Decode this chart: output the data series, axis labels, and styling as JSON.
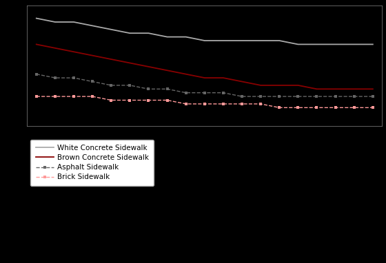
{
  "distances": [
    26,
    25,
    24,
    23,
    22,
    21,
    20,
    19,
    18,
    17,
    16,
    15,
    14,
    13,
    12,
    11,
    10,
    9,
    8
  ],
  "brick": [
    56,
    56,
    56,
    56,
    54,
    54,
    54,
    54,
    52,
    52,
    52,
    52,
    52,
    50,
    50,
    50,
    50,
    50,
    50
  ],
  "asphalt": [
    68,
    66,
    66,
    64,
    62,
    62,
    60,
    60,
    58,
    58,
    58,
    56,
    56,
    56,
    56,
    56,
    56,
    56,
    56
  ],
  "white_concrete": [
    98,
    96,
    96,
    94,
    92,
    90,
    90,
    88,
    88,
    86,
    86,
    86,
    86,
    86,
    84,
    84,
    84,
    84,
    84
  ],
  "brown_concrete": [
    84,
    82,
    80,
    78,
    76,
    74,
    72,
    70,
    68,
    66,
    66,
    64,
    62,
    62,
    62,
    60,
    60,
    60,
    60
  ],
  "background_color": "#000000",
  "text_color": "#ffffff",
  "brick_color": "#ff9999",
  "asphalt_color": "#666666",
  "white_concrete_color": "#aaaaaa",
  "brown_concrete_color": "#880000",
  "legend_facecolor": "#ffffff",
  "legend_edgecolor": "#aaaaaa",
  "legend_textcolor": "#000000",
  "legend_labels": [
    "Brick Sidewalk",
    "Asphalt Sidewalk",
    "White Concrete Sidewalk",
    "Brown Concrete Sidewalk"
  ],
  "ylim": [
    40,
    105
  ],
  "xlim_left": 26.5,
  "xlim_right": 7.5
}
